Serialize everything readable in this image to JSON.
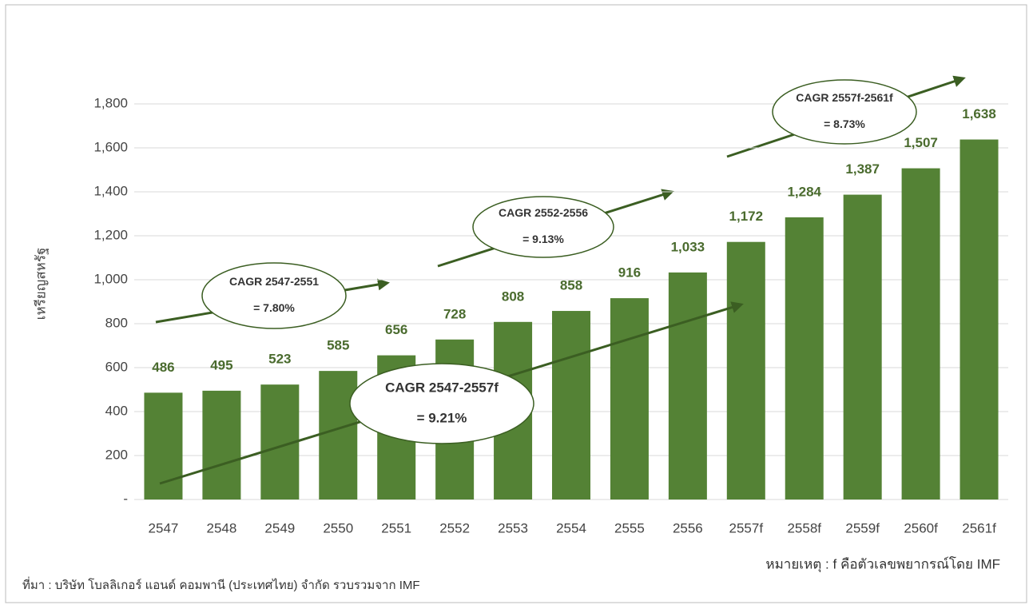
{
  "chart_data": {
    "type": "bar",
    "y_label": "เหรียญสหรัฐ",
    "categories": [
      "2547",
      "2548",
      "2549",
      "2550",
      "2551",
      "2552",
      "2553",
      "2554",
      "2555",
      "2556",
      "2557f",
      "2558f",
      "2559f",
      "2560f",
      "2561f"
    ],
    "values": [
      486,
      495,
      523,
      585,
      656,
      728,
      808,
      858,
      916,
      1033,
      1172,
      1284,
      1387,
      1507,
      1638
    ],
    "value_labels": [
      "486",
      "495",
      "523",
      "585",
      "656",
      "728",
      "808",
      "858",
      "916",
      "1,033",
      "1,172",
      "1,284",
      "1,387",
      "1,507",
      "1,638"
    ],
    "color": "#548235",
    "ylim": [
      0,
      1800
    ],
    "yticks": [
      {
        "value": 0,
        "label": "-"
      },
      {
        "value": 200,
        "label": "200"
      },
      {
        "value": 400,
        "label": "400"
      },
      {
        "value": 600,
        "label": "600"
      },
      {
        "value": 800,
        "label": "800"
      },
      {
        "value": 1000,
        "label": "1,000"
      },
      {
        "value": 1200,
        "label": "1,200"
      },
      {
        "value": 1400,
        "label": "1,400"
      },
      {
        "value": 1600,
        "label": "1,600"
      },
      {
        "value": 1800,
        "label": "1,800"
      }
    ],
    "grid": true,
    "annotations": [
      {
        "lines": [
          "CAGR 2547-2551",
          "= 7.80%"
        ]
      },
      {
        "lines": [
          "CAGR 2552-2556",
          "= 9.13%"
        ]
      },
      {
        "lines": [
          "CAGR 2557f-2561f",
          "= 8.73%"
        ]
      },
      {
        "lines": [
          "CAGR 2547-2557f",
          "= 9.21%"
        ]
      }
    ],
    "note": "หมายเหตุ : f คือตัวเลขพยากรณ์โดย IMF",
    "source": "ที่มา : บริษัท โบลลิเกอร์ แอนด์ คอมพานี (ประเทศไทย) จำกัด รวบรวมจาก IMF"
  }
}
